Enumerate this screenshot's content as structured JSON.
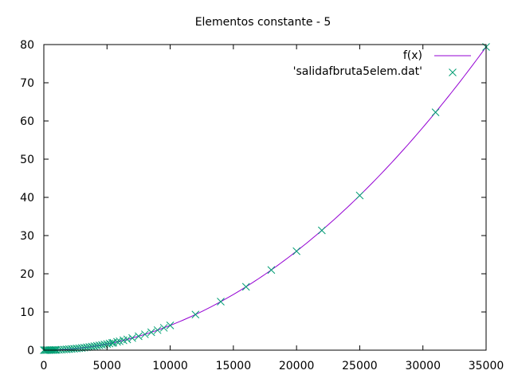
{
  "chart_data": {
    "type": "line",
    "title": "Elementos constante - 5",
    "xlabel": "",
    "ylabel": "",
    "xlim": [
      0,
      35000
    ],
    "ylim": [
      0,
      80
    ],
    "xticks": [
      0,
      5000,
      10000,
      15000,
      20000,
      25000,
      30000,
      35000
    ],
    "xtick_labels": [
      "0",
      "5000",
      "10000",
      "15000",
      "20000",
      "25000",
      "30000",
      "35000"
    ],
    "yticks": [
      0,
      10,
      20,
      30,
      40,
      50,
      60,
      70,
      80
    ],
    "ytick_labels": [
      "0",
      "10",
      "20",
      "30",
      "40",
      "50",
      "60",
      "70",
      "80"
    ],
    "grid": false,
    "legend_position": "top-right",
    "series": [
      {
        "name": "f(x)",
        "kind": "line",
        "color": "#9400d3",
        "coefficient": 6.48e-08,
        "x": [
          0,
          2500,
          5000,
          7500,
          10000,
          12500,
          15000,
          17500,
          20000,
          22500,
          25000,
          27500,
          30000,
          32500,
          35000
        ],
        "y": [
          0,
          0.41,
          1.62,
          3.65,
          6.48,
          10.13,
          14.58,
          19.85,
          25.92,
          32.81,
          40.5,
          49.01,
          58.32,
          68.45,
          79.38
        ]
      },
      {
        "name": "'salidafbruta5elem.dat'",
        "kind": "scatter",
        "color": "#009e73",
        "x": [
          0,
          100,
          200,
          300,
          400,
          500,
          600,
          700,
          800,
          900,
          1000,
          1200,
          1400,
          1600,
          1800,
          2000,
          2200,
          2400,
          2600,
          2800,
          3000,
          3200,
          3400,
          3600,
          3800,
          4000,
          4200,
          4400,
          4600,
          4800,
          5000,
          5200,
          5400,
          5500,
          5800,
          6000,
          6300,
          6600,
          7000,
          7500,
          8000,
          8500,
          9000,
          9500,
          10000,
          12000,
          14000,
          16000,
          18000,
          20000,
          22000,
          25000,
          31000,
          35000
        ],
        "y": [
          0,
          0,
          0,
          0.01,
          0.01,
          0.02,
          0.02,
          0.03,
          0.04,
          0.05,
          0.06,
          0.09,
          0.13,
          0.17,
          0.21,
          0.26,
          0.31,
          0.37,
          0.44,
          0.51,
          0.58,
          0.66,
          0.75,
          0.84,
          0.94,
          1.04,
          1.14,
          1.25,
          1.37,
          1.49,
          1.62,
          1.75,
          1.89,
          1.96,
          2.18,
          2.33,
          2.57,
          2.82,
          3.18,
          3.65,
          4.15,
          4.68,
          5.25,
          5.85,
          6.48,
          9.33,
          12.7,
          16.59,
          20.99,
          25.92,
          31.36,
          40.5,
          62.27,
          79.38
        ]
      }
    ]
  }
}
